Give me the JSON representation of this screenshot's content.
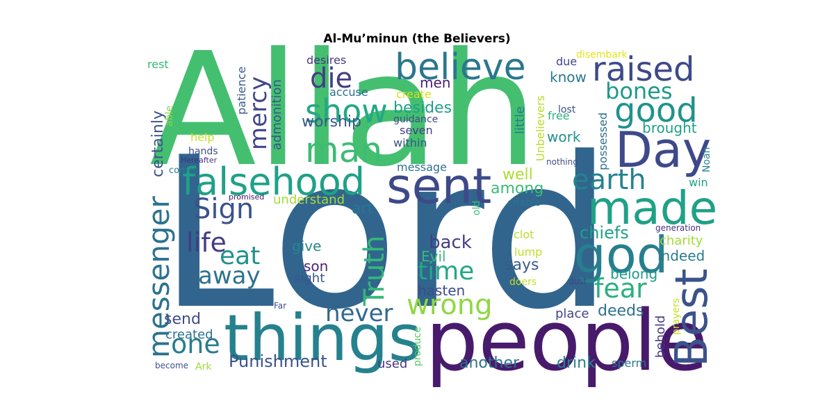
{
  "title": "Al-Mu’minun (the Believers)",
  "words": [
    {
      "text": "Lord",
      "color": "#31658e"
    },
    {
      "text": "Allah",
      "color": "#44bf70"
    },
    {
      "text": "people",
      "color": "#481a6c"
    },
    {
      "text": "things",
      "color": "#26818e"
    },
    {
      "text": "sent",
      "color": "#3e4989"
    },
    {
      "text": "falsehood",
      "color": "#1fa187"
    },
    {
      "text": "believe",
      "color": "#2a778e"
    },
    {
      "text": "made",
      "color": "#1fa187"
    },
    {
      "text": "Day",
      "color": "#3e4989"
    },
    {
      "text": "good",
      "color": "#20928c"
    },
    {
      "text": "god",
      "color": "#277f8e"
    },
    {
      "text": "Best",
      "color": "#3b528b"
    },
    {
      "text": "raised",
      "color": "#3e4989"
    },
    {
      "text": "man",
      "color": "#3dbc74"
    },
    {
      "text": "show",
      "color": "#22a884"
    },
    {
      "text": "messenger",
      "color": "#2c728e"
    },
    {
      "text": "Truth",
      "color": "#35b779"
    },
    {
      "text": "wrong",
      "color": "#8fd744"
    },
    {
      "text": "Sign",
      "color": "#3b528b"
    },
    {
      "text": "earth",
      "color": "#26828e"
    },
    {
      "text": "bones",
      "color": "#1f998a"
    },
    {
      "text": "fear",
      "color": "#2ab07f"
    },
    {
      "text": "die",
      "color": "#433e85"
    },
    {
      "text": "mercy",
      "color": "#404688"
    },
    {
      "text": "life",
      "color": "#433d84"
    },
    {
      "text": "eat",
      "color": "#20928c"
    },
    {
      "text": "away",
      "color": "#2c728e"
    },
    {
      "text": "one",
      "color": "#287d8e"
    },
    {
      "text": "never",
      "color": "#31688e"
    },
    {
      "text": "time",
      "color": "#22a884"
    },
    {
      "text": "Punishment",
      "color": "#3b528b"
    },
    {
      "text": "back",
      "color": "#433e85"
    },
    {
      "text": "chiefs",
      "color": "#1fa088"
    },
    {
      "text": "another",
      "color": "#2c738e"
    },
    {
      "text": "drink",
      "color": "#26828e"
    },
    {
      "text": "worship",
      "color": "#39568c"
    },
    {
      "text": "besides",
      "color": "#1f9e89"
    },
    {
      "text": "certainly",
      "color": "#3b528b"
    },
    {
      "text": "says",
      "color": "#375b8d"
    },
    {
      "text": "deeds",
      "color": "#2d708e"
    },
    {
      "text": "brought",
      "color": "#1f9e89"
    },
    {
      "text": "among",
      "color": "#3bbb75"
    },
    {
      "text": "well",
      "color": "#addc30"
    },
    {
      "text": "art",
      "color": "#2a778e"
    },
    {
      "text": "send",
      "color": "#3e4c8a"
    },
    {
      "text": "created",
      "color": "#2c718e"
    },
    {
      "text": "understand",
      "color": "#a5db36"
    },
    {
      "text": "men",
      "color": "#481f70"
    },
    {
      "text": "know",
      "color": "#2a788e"
    },
    {
      "text": "work",
      "color": "#21918c"
    },
    {
      "text": "indeed",
      "color": "#297b8e"
    },
    {
      "text": "Evil",
      "color": "#3aba76"
    },
    {
      "text": "son",
      "color": "#482475"
    },
    {
      "text": "give",
      "color": "#24878e"
    },
    {
      "text": "hasten",
      "color": "#3e4c8a"
    },
    {
      "text": "sight",
      "color": "#3a548c"
    },
    {
      "text": "belong",
      "color": "#1e9b8a"
    },
    {
      "text": "behold",
      "color": "#443983"
    },
    {
      "text": "place",
      "color": "#404688"
    },
    {
      "text": "used",
      "color": "#453781"
    },
    {
      "text": "charity",
      "color": "#a0da39"
    },
    {
      "text": "admonition",
      "color": "#39558c"
    },
    {
      "text": "patience",
      "color": "#38598c"
    },
    {
      "text": "desires",
      "color": "#453781"
    },
    {
      "text": "accuse",
      "color": "#2d708e"
    },
    {
      "text": "create",
      "color": "#d8e219"
    },
    {
      "text": "guidance",
      "color": "#3e4a89"
    },
    {
      "text": "seven",
      "color": "#433d84"
    },
    {
      "text": "within",
      "color": "#3b528b"
    },
    {
      "text": "message",
      "color": "#2c728e"
    },
    {
      "text": "little",
      "color": "#2a788e"
    },
    {
      "text": "Unbelievers",
      "color": "#b5de2b"
    },
    {
      "text": "lost",
      "color": "#3b528b"
    },
    {
      "text": "free",
      "color": "#2eb37c"
    },
    {
      "text": "due",
      "color": "#3f4788"
    },
    {
      "text": "disembark",
      "color": "#e2e418"
    },
    {
      "text": "nothing",
      "color": "#3d4e8a"
    },
    {
      "text": "possessed",
      "color": "#2d708e"
    },
    {
      "text": "Noah",
      "color": "#26828e"
    },
    {
      "text": "win",
      "color": "#1fa188"
    },
    {
      "text": "enable",
      "color": "#2c728e"
    },
    {
      "text": "old",
      "color": "#3dbc74"
    },
    {
      "text": "clot",
      "color": "#b8de29"
    },
    {
      "text": "lump",
      "color": "#bddf26"
    },
    {
      "text": "doers",
      "color": "#c2df23"
    },
    {
      "text": "dust",
      "color": "#414487"
    },
    {
      "text": "generation",
      "color": "#46307e"
    },
    {
      "text": "prayers",
      "color": "#c8e020"
    },
    {
      "text": "produce",
      "color": "#58c765"
    },
    {
      "text": "sperm",
      "color": "#2a788e"
    },
    {
      "text": "rest",
      "color": "#35b779"
    },
    {
      "text": "able",
      "color": "#89d548"
    },
    {
      "text": "help",
      "color": "#c0df25"
    },
    {
      "text": "hands",
      "color": "#3e4c8a"
    },
    {
      "text": "Hereafter",
      "color": "#462f7e"
    },
    {
      "text": "comes",
      "color": "#287c8e"
    },
    {
      "text": "promised",
      "color": "#471365"
    },
    {
      "text": "Far",
      "color": "#3f4889"
    },
    {
      "text": "become",
      "color": "#3b528b"
    },
    {
      "text": "Ark",
      "color": "#a2da37"
    }
  ]
}
